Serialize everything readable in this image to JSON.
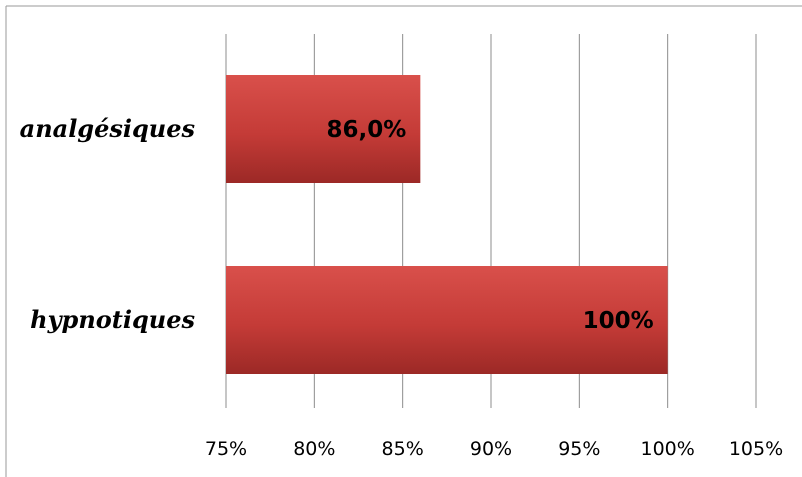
{
  "chart_data": {
    "type": "bar",
    "orientation": "horizontal",
    "categories": [
      "analgésiques",
      "hypnotiques"
    ],
    "values": [
      86.0,
      100
    ],
    "data_labels": [
      "86,0%",
      "100%"
    ],
    "xlim": [
      75,
      105
    ],
    "xticks": [
      75,
      80,
      85,
      90,
      95,
      100,
      105
    ],
    "xtick_labels": [
      "75%",
      "80%",
      "85%",
      "90%",
      "95%",
      "100%",
      "105%"
    ],
    "grid": "vertical",
    "legend": "none",
    "bar_color": "#c43b37"
  }
}
